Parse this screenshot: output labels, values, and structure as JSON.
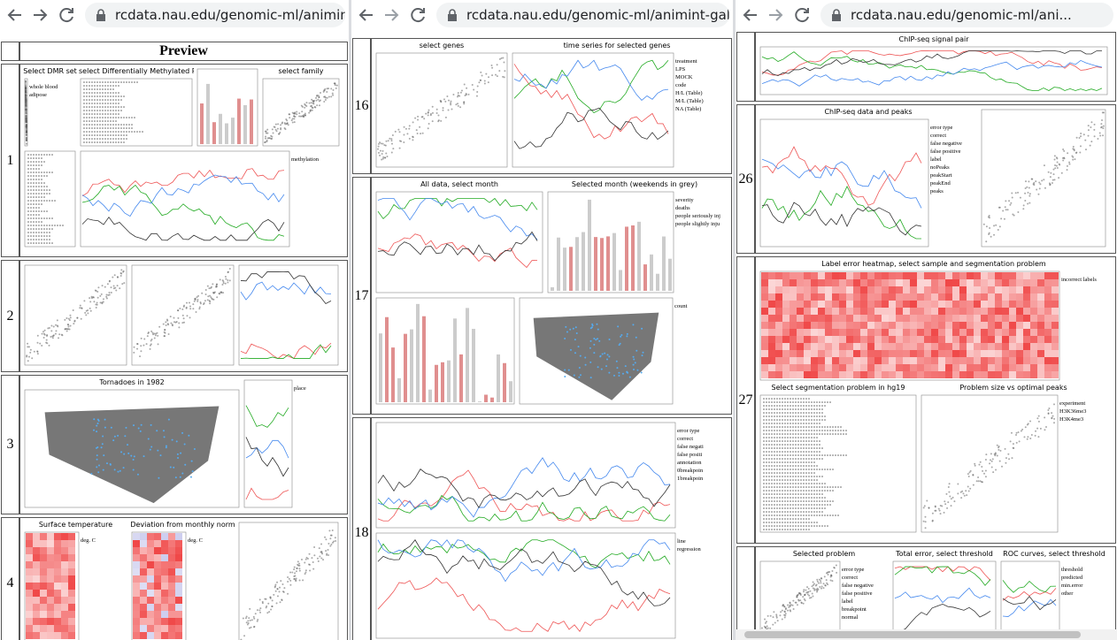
{
  "windows": [
    {
      "url": "rcdata.nau.edu/genomic-ml/animint-",
      "header": "Preview",
      "rows": [
        {
          "number": "1",
          "plots": [
            {
              "title": "Select DMR set",
              "legend": [
                "whole blood",
                "adipose"
              ]
            },
            {
              "title": "select Differentially Methylated Region"
            },
            {
              "title": "select family"
            },
            {
              "legend": [
                "methylation"
              ]
            }
          ]
        },
        {
          "number": "2",
          "plots": []
        },
        {
          "number": "3",
          "plots": [
            {
              "title": "Tornadoes in 1982"
            },
            {
              "legend": [
                "place"
              ]
            }
          ]
        },
        {
          "number": "4",
          "plots": [
            {
              "title": "Surface temperature",
              "legend": [
                "deg. C"
              ]
            },
            {
              "title": "Deviation from monthly norm",
              "legend": [
                "deg. C"
              ]
            }
          ]
        }
      ]
    },
    {
      "url": "rcdata.nau.edu/genomic-ml/animint-gal",
      "rows": [
        {
          "number": "16",
          "plots": [
            {
              "title": "select genes"
            },
            {
              "title": "time series for selected genes",
              "legend": [
                "treatment",
                "LPS",
                "MOCK",
                "code",
                "H/L (Table)",
                "M/L (Table)",
                "NA (Table)"
              ]
            }
          ]
        },
        {
          "number": "17",
          "plots": [
            {
              "title": "All data, select month"
            },
            {
              "title": "Selected month (weekends in grey)",
              "legend": [
                "severity",
                "deaths",
                "people seriously inj",
                "people slightly inju"
              ]
            },
            {
              "legend": [
                "count"
              ]
            }
          ]
        },
        {
          "number": "18",
          "plots": [
            {
              "legend": [
                "error type",
                "correct",
                "false negati",
                "false positi",
                "annotation",
                "0breakpoin",
                "1breakpoin"
              ]
            },
            {
              "legend": [
                "line",
                "regression"
              ]
            }
          ]
        }
      ]
    },
    {
      "url": "rcdata.nau.edu/genomic-ml/ani...",
      "rows": [
        {
          "plots": [
            {
              "title": "ChIP-seq signal pair"
            }
          ]
        },
        {
          "number": "26",
          "plots": [
            {
              "title": "ChIP-seq data and peaks",
              "legend": [
                "error type",
                "correct",
                "false negative",
                "false positive",
                "label",
                "noPeaks",
                "peakStart",
                "peakEnd",
                "peaks"
              ]
            }
          ]
        },
        {
          "number": "27",
          "plots": [
            {
              "title": "Label error heatmap, select sample and segmentation problem",
              "legend": [
                "incorrect labels"
              ]
            },
            {
              "title": "Select segmentation problem in hg19"
            },
            {
              "title": "Problem size vs optimal peaks",
              "legend": [
                "experiment",
                "H3K36me3",
                "H3K4me3"
              ]
            }
          ]
        },
        {
          "plots": [
            {
              "title": "Selected problem",
              "legend": [
                "error type",
                "correct",
                "false negative",
                "false positive",
                "label",
                "breakpoint",
                "normal"
              ]
            },
            {
              "title": "Total error, select threshold"
            },
            {
              "title": "ROC curves, select threshold",
              "legend": [
                "threshold",
                "predicted",
                "min.error",
                "other"
              ]
            }
          ]
        }
      ]
    }
  ]
}
